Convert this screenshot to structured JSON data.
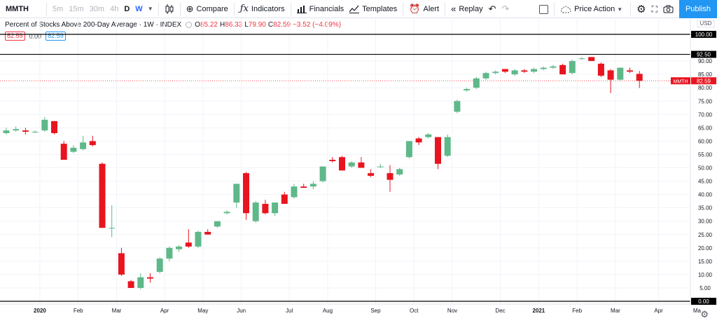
{
  "toolbar": {
    "symbol": "MMTH",
    "intervals": [
      "5m",
      "15m",
      "30m",
      "4h",
      "D",
      "W"
    ],
    "compare_label": "Compare",
    "indicators_label": "Indicators",
    "financials_label": "Financials",
    "templates_label": "Templates",
    "alert_label": "Alert",
    "replay_label": "Replay",
    "price_action_label": "Price Action",
    "publish_label": "Publish",
    "icons": {
      "candles": "candlestick-icon",
      "compare": "plus-circle-icon",
      "indicators": "fx-icon",
      "financials": "bar-chart-icon",
      "templates": "templates-icon",
      "alert": "alarm-clock-icon",
      "replay": "rewind-icon",
      "undo": "undo-icon",
      "redo": "redo-icon",
      "cloud": "cloud-icon",
      "settings": "gear-icon",
      "fullscreen": "fullscreen-icon",
      "camera": "camera-icon"
    }
  },
  "legend": {
    "title": "Percent of Stocks Above 200-Day Average · 1W · INDEX",
    "o_label": "O",
    "o_value": "85.22",
    "h_label": "H",
    "h_value": "86.33",
    "l_label": "L",
    "l_value": "79.90",
    "c_label": "C",
    "c_value": "82.59",
    "change": "−3.52 (−4.09%)",
    "row2_a": "82.59",
    "row2_b": "0.00",
    "row2_c": "82.59"
  },
  "colors": {
    "up": "#5fb889",
    "down": "#e8141f",
    "grid": "#f0f3fa",
    "hline": "#000000",
    "accent": "#2196f3"
  },
  "chart_data": {
    "type": "candlestick",
    "interval": "1W",
    "currency_label": "USD",
    "price_tag_label": "MMTH",
    "price_tag_value": "82.59",
    "y_ticks": [
      "0.00",
      "5.00",
      "10.00",
      "15.00",
      "20.00",
      "25.00",
      "30.00",
      "35.00",
      "40.00",
      "45.00",
      "50.00",
      "55.00",
      "60.00",
      "65.00",
      "70.00",
      "75.00",
      "80.00",
      "85.00",
      "90.00",
      "100.00"
    ],
    "ylim": [
      0,
      101
    ],
    "horizontal_lines": [
      {
        "value": 100.0,
        "label": "100.00"
      },
      {
        "value": 92.5,
        "label": "92.50"
      },
      {
        "value": 0.0,
        "label": "0.00"
      }
    ],
    "x_ticks": [
      {
        "label": "2020",
        "bar": 3.5,
        "bold": true
      },
      {
        "label": "Feb",
        "bar": 7.5,
        "bold": false
      },
      {
        "label": "Mar",
        "bar": 11.5,
        "bold": false
      },
      {
        "label": "Apr",
        "bar": 16.5,
        "bold": false
      },
      {
        "label": "May",
        "bar": 20.5,
        "bold": false
      },
      {
        "label": "Jun",
        "bar": 24.5,
        "bold": false
      },
      {
        "label": "Jul",
        "bar": 29.5,
        "bold": false
      },
      {
        "label": "Aug",
        "bar": 33.5,
        "bold": false
      },
      {
        "label": "Sep",
        "bar": 38.5,
        "bold": false
      },
      {
        "label": "Oct",
        "bar": 42.5,
        "bold": false
      },
      {
        "label": "Nov",
        "bar": 46.5,
        "bold": false
      },
      {
        "label": "Dec",
        "bar": 51.5,
        "bold": false
      },
      {
        "label": "2021",
        "bar": 55.5,
        "bold": true
      },
      {
        "label": "Feb",
        "bar": 59.5,
        "bold": false
      },
      {
        "label": "Mar",
        "bar": 63.5,
        "bold": false
      },
      {
        "label": "Apr",
        "bar": 68.0,
        "bold": false
      },
      {
        "label": "Ma",
        "bar": 72.0,
        "bold": false
      }
    ],
    "bar_count": 73,
    "candles": [
      {
        "o": 63.0,
        "h": 65.0,
        "l": 62.5,
        "c": 64.0
      },
      {
        "o": 64.0,
        "h": 65.5,
        "l": 63.5,
        "c": 64.5
      },
      {
        "o": 64.0,
        "h": 65.0,
        "l": 62.5,
        "c": 63.5
      },
      {
        "o": 63.5,
        "h": 64.0,
        "l": 63.0,
        "c": 63.5
      },
      {
        "o": 64.0,
        "h": 69.0,
        "l": 63.5,
        "c": 68.0
      },
      {
        "o": 67.5,
        "h": 67.5,
        "l": 62.5,
        "c": 63.0
      },
      {
        "o": 59.0,
        "h": 60.0,
        "l": 53.0,
        "c": 53.0
      },
      {
        "o": 56.0,
        "h": 58.5,
        "l": 55.5,
        "c": 57.5
      },
      {
        "o": 57.0,
        "h": 62.0,
        "l": 56.5,
        "c": 59.5
      },
      {
        "o": 60.0,
        "h": 62.0,
        "l": 58.0,
        "c": 58.5
      },
      {
        "o": 51.5,
        "h": 52.0,
        "l": 27.5,
        "c": 27.5
      },
      {
        "o": 27.5,
        "h": 36.0,
        "l": 24.0,
        "c": 27.5
      },
      {
        "o": 18.0,
        "h": 20.0,
        "l": 9.5,
        "c": 10.0
      },
      {
        "o": 7.5,
        "h": 8.0,
        "l": 5.0,
        "c": 5.0
      },
      {
        "o": 5.0,
        "h": 10.5,
        "l": 4.5,
        "c": 9.0
      },
      {
        "o": 9.0,
        "h": 10.5,
        "l": 7.0,
        "c": 8.5
      },
      {
        "o": 11.0,
        "h": 16.5,
        "l": 10.5,
        "c": 16.0
      },
      {
        "o": 16.0,
        "h": 20.5,
        "l": 15.0,
        "c": 20.0
      },
      {
        "o": 19.5,
        "h": 21.0,
        "l": 18.5,
        "c": 20.5
      },
      {
        "o": 22.0,
        "h": 27.0,
        "l": 20.0,
        "c": 20.5
      },
      {
        "o": 20.5,
        "h": 26.5,
        "l": 20.0,
        "c": 26.0
      },
      {
        "o": 26.0,
        "h": 27.0,
        "l": 25.0,
        "c": 25.0
      },
      {
        "o": 28.0,
        "h": 30.0,
        "l": 27.5,
        "c": 30.0
      },
      {
        "o": 33.0,
        "h": 34.0,
        "l": 32.5,
        "c": 33.5
      },
      {
        "o": 37.0,
        "h": 44.0,
        "l": 35.0,
        "c": 44.0
      },
      {
        "o": 48.0,
        "h": 48.5,
        "l": 30.5,
        "c": 33.0
      },
      {
        "o": 30.0,
        "h": 37.5,
        "l": 29.5,
        "c": 37.0
      },
      {
        "o": 36.5,
        "h": 38.0,
        "l": 32.5,
        "c": 33.0
      },
      {
        "o": 33.0,
        "h": 37.0,
        "l": 32.0,
        "c": 37.0
      },
      {
        "o": 40.0,
        "h": 41.0,
        "l": 36.5,
        "c": 36.5
      },
      {
        "o": 39.0,
        "h": 44.0,
        "l": 38.5,
        "c": 43.0
      },
      {
        "o": 43.0,
        "h": 44.0,
        "l": 42.5,
        "c": 42.5
      },
      {
        "o": 43.0,
        "h": 45.0,
        "l": 42.0,
        "c": 44.0
      },
      {
        "o": 45.0,
        "h": 50.5,
        "l": 44.5,
        "c": 50.5
      },
      {
        "o": 53.0,
        "h": 54.0,
        "l": 52.0,
        "c": 52.5
      },
      {
        "o": 54.0,
        "h": 54.5,
        "l": 49.0,
        "c": 49.0
      },
      {
        "o": 50.5,
        "h": 52.5,
        "l": 50.0,
        "c": 52.0
      },
      {
        "o": 52.0,
        "h": 54.0,
        "l": 50.0,
        "c": 50.0
      },
      {
        "o": 48.0,
        "h": 49.5,
        "l": 46.5,
        "c": 47.0
      },
      {
        "o": 50.5,
        "h": 51.5,
        "l": 50.0,
        "c": 50.5
      },
      {
        "o": 48.0,
        "h": 51.0,
        "l": 41.0,
        "c": 45.5
      },
      {
        "o": 47.5,
        "h": 50.0,
        "l": 47.0,
        "c": 49.5
      },
      {
        "o": 54.0,
        "h": 60.0,
        "l": 53.5,
        "c": 60.0
      },
      {
        "o": 61.0,
        "h": 61.5,
        "l": 58.5,
        "c": 59.5
      },
      {
        "o": 61.5,
        "h": 63.0,
        "l": 61.0,
        "c": 62.5
      },
      {
        "o": 61.5,
        "h": 61.5,
        "l": 49.5,
        "c": 51.5
      },
      {
        "o": 54.5,
        "h": 62.5,
        "l": 54.0,
        "c": 61.5
      },
      {
        "o": 71.0,
        "h": 75.5,
        "l": 70.5,
        "c": 75.0
      },
      {
        "o": 79.0,
        "h": 80.0,
        "l": 78.5,
        "c": 79.5
      },
      {
        "o": 80.0,
        "h": 84.0,
        "l": 79.5,
        "c": 83.5
      },
      {
        "o": 83.5,
        "h": 86.0,
        "l": 83.0,
        "c": 85.5
      },
      {
        "o": 85.5,
        "h": 86.5,
        "l": 85.0,
        "c": 86.0
      },
      {
        "o": 87.0,
        "h": 87.0,
        "l": 85.5,
        "c": 86.0
      },
      {
        "o": 85.0,
        "h": 87.0,
        "l": 84.5,
        "c": 86.5
      },
      {
        "o": 86.5,
        "h": 87.0,
        "l": 85.5,
        "c": 86.0
      },
      {
        "o": 86.0,
        "h": 87.5,
        "l": 85.5,
        "c": 87.0
      },
      {
        "o": 87.0,
        "h": 88.0,
        "l": 86.5,
        "c": 87.5
      },
      {
        "o": 87.5,
        "h": 88.5,
        "l": 87.0,
        "c": 88.0
      },
      {
        "o": 88.5,
        "h": 89.0,
        "l": 85.0,
        "c": 85.0
      },
      {
        "o": 85.5,
        "h": 90.5,
        "l": 85.0,
        "c": 90.0
      },
      {
        "o": 91.0,
        "h": 91.5,
        "l": 90.5,
        "c": 91.0
      },
      {
        "o": 91.5,
        "h": 91.5,
        "l": 90.0,
        "c": 90.0
      },
      {
        "o": 89.0,
        "h": 89.5,
        "l": 84.0,
        "c": 84.5
      },
      {
        "o": 86.5,
        "h": 87.0,
        "l": 78.0,
        "c": 83.0
      },
      {
        "o": 83.0,
        "h": 87.5,
        "l": 82.5,
        "c": 87.5
      },
      {
        "o": 86.5,
        "h": 87.5,
        "l": 85.5,
        "c": 86.0
      },
      {
        "o": 85.2,
        "h": 86.3,
        "l": 79.9,
        "c": 82.6
      }
    ]
  }
}
